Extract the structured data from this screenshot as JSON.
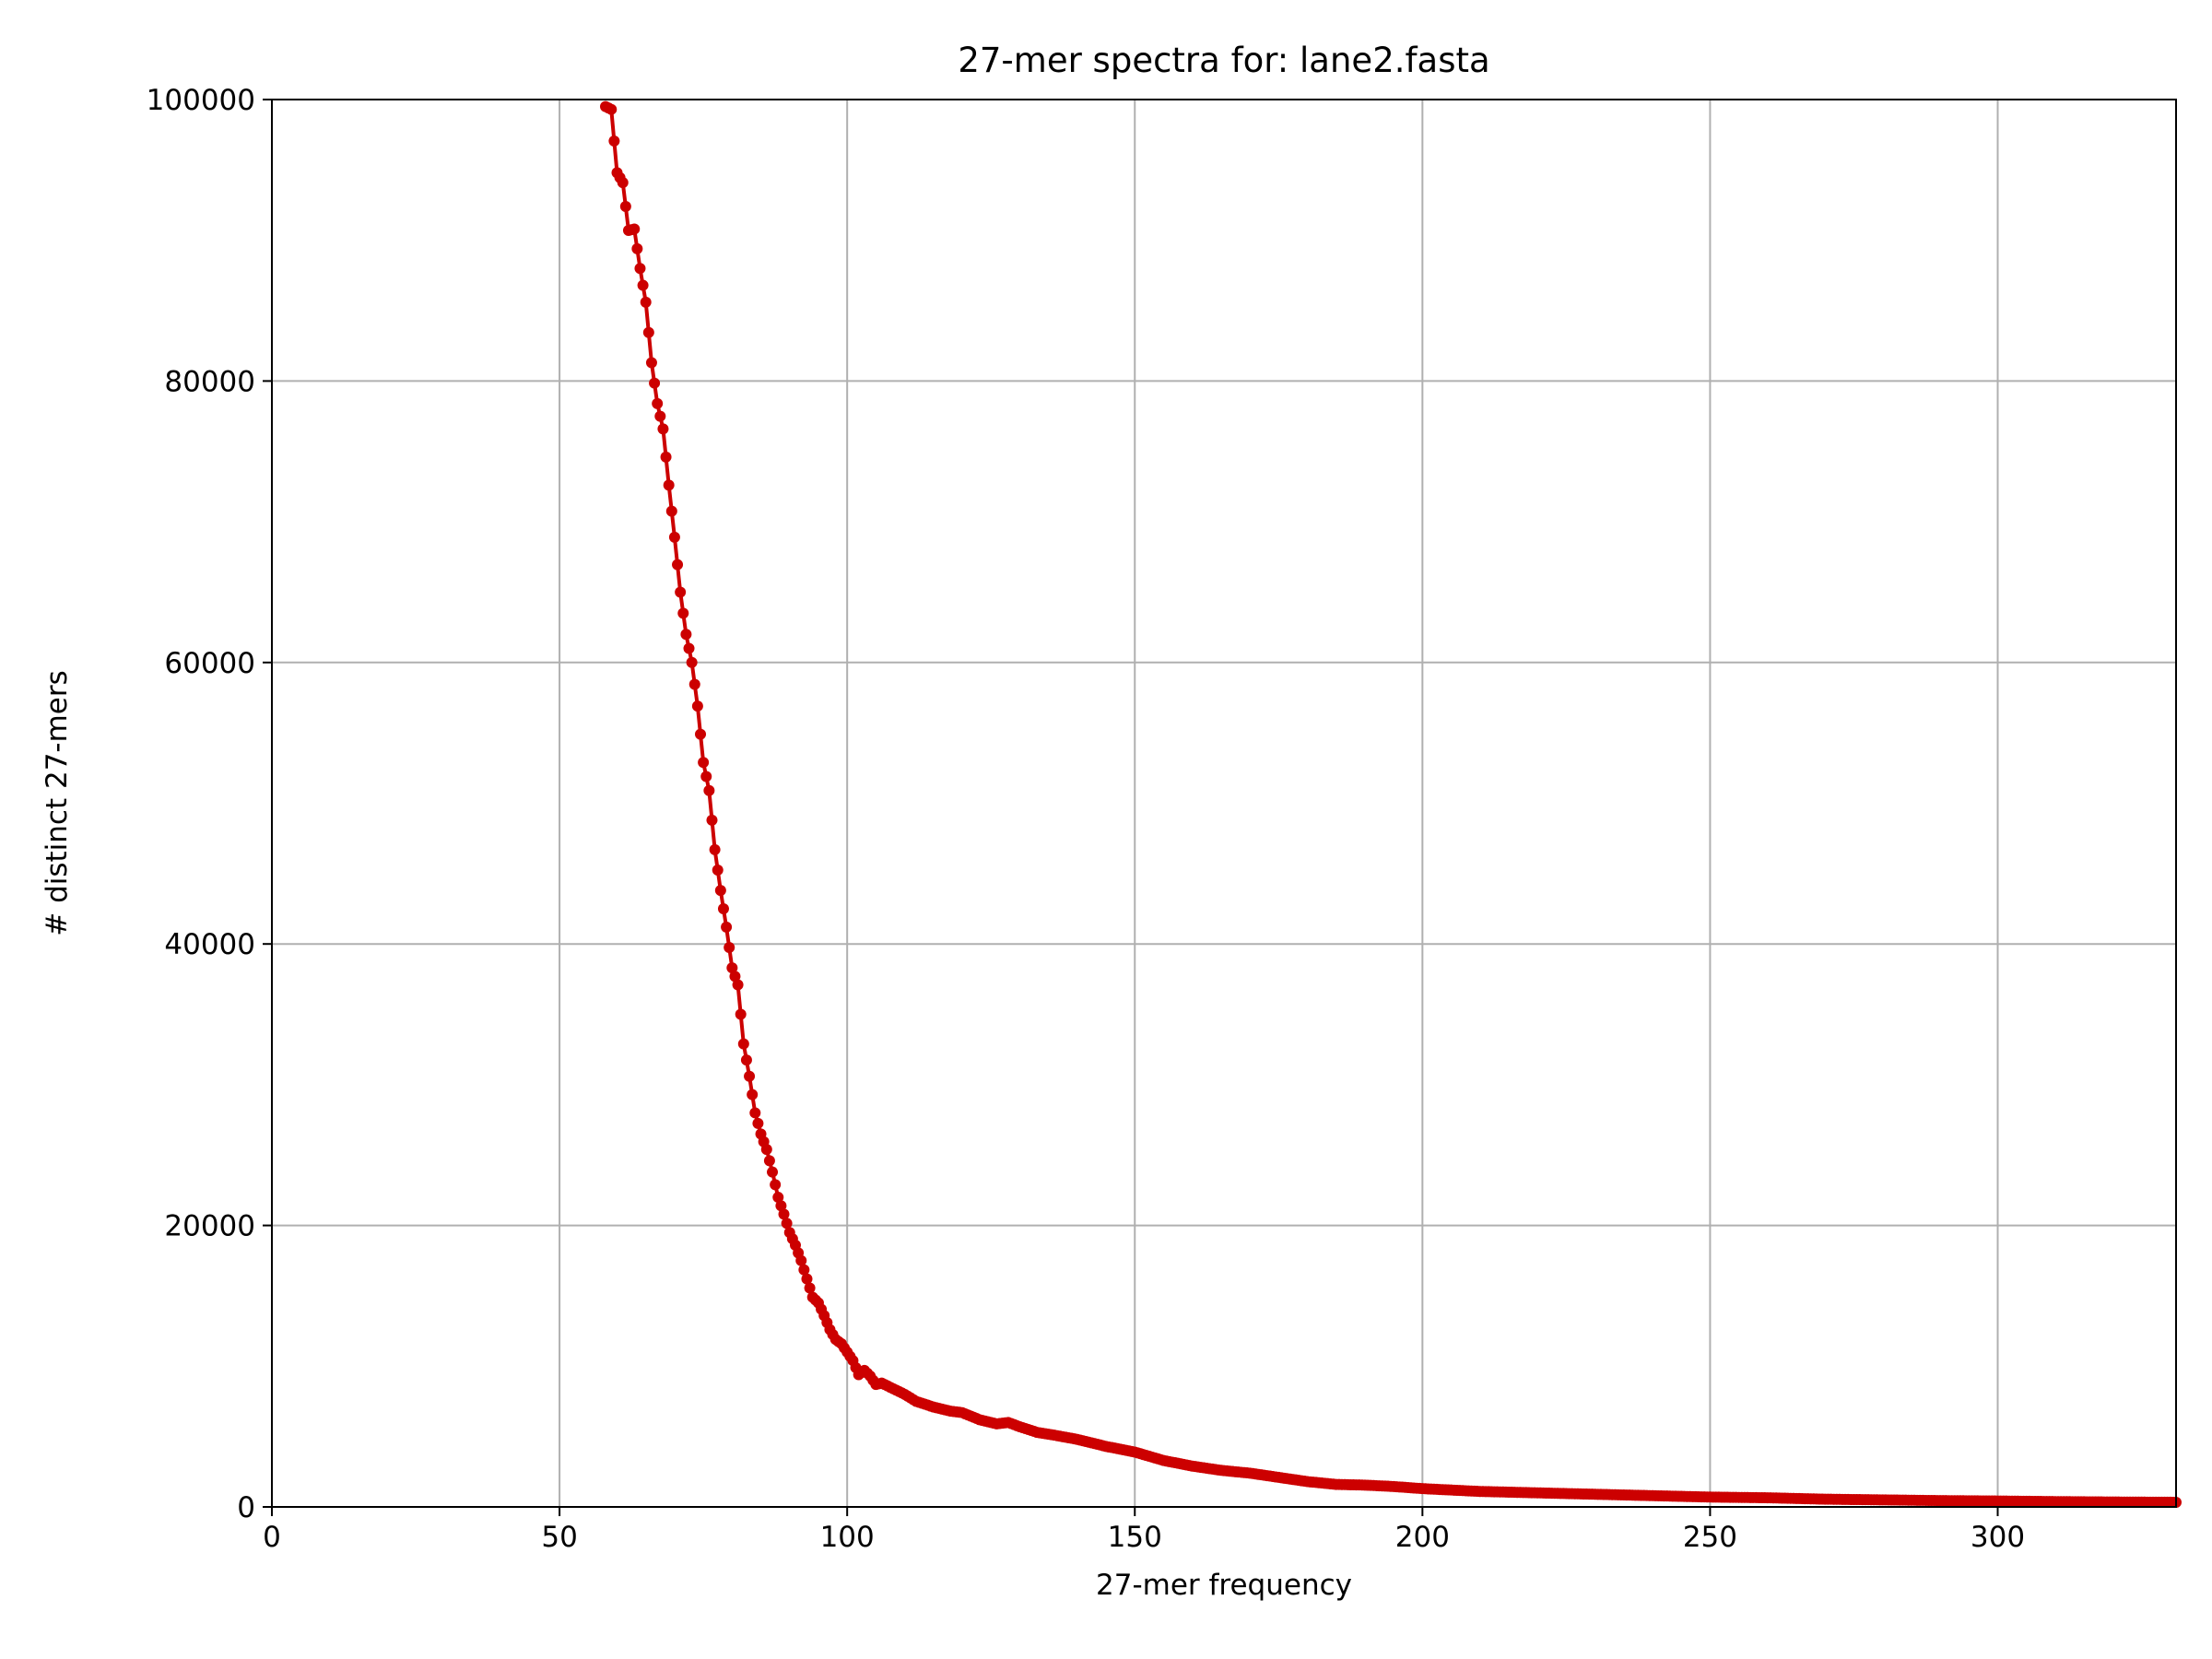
{
  "chart_data": {
    "type": "line",
    "title": "27-mer spectra for: lane2.fasta",
    "xlabel": "27-mer frequency",
    "ylabel": "# distinct 27-mers",
    "xlim": [
      0,
      331
    ],
    "ylim": [
      0,
      100000
    ],
    "x_ticks": [
      "0",
      "50",
      "100",
      "150",
      "200",
      "250",
      "300"
    ],
    "x_tick_values": [
      0,
      50,
      100,
      150,
      200,
      250,
      300
    ],
    "y_ticks": [
      "0",
      "20000",
      "40000",
      "60000",
      "80000",
      "100000"
    ],
    "y_tick_values": [
      0,
      20000,
      40000,
      60000,
      80000,
      100000
    ],
    "grid": true,
    "line_color": "#cc0000",
    "anchors": {
      "x": [
        58,
        59,
        60,
        61,
        62,
        63,
        64,
        65,
        66,
        67,
        68,
        69,
        70,
        71,
        72,
        73,
        74,
        75,
        76,
        77,
        78,
        79,
        80,
        81,
        82,
        83,
        84,
        85,
        86,
        87,
        88,
        89,
        90,
        91,
        92,
        93,
        94,
        95,
        96,
        97,
        98,
        99,
        100,
        101,
        102,
        103,
        104,
        105,
        106,
        108,
        110,
        112,
        115,
        118,
        120,
        123,
        126,
        128,
        130,
        133,
        136,
        140,
        145,
        150,
        155,
        160,
        165,
        170,
        175,
        180,
        185,
        190,
        195,
        200,
        205,
        210,
        220,
        230,
        240,
        250,
        260,
        270,
        280,
        290,
        300,
        310,
        320,
        331
      ],
      "y": [
        99500,
        99300,
        94800,
        94100,
        90700,
        90800,
        88000,
        85600,
        81300,
        78400,
        76600,
        72600,
        68900,
        65000,
        62000,
        60000,
        56900,
        52900,
        50900,
        46700,
        43800,
        41200,
        38300,
        37100,
        32900,
        30600,
        28000,
        26500,
        25400,
        23800,
        22000,
        20800,
        19500,
        18600,
        17500,
        16200,
        14900,
        14500,
        13600,
        12600,
        11900,
        11600,
        11000,
        10400,
        9400,
        9700,
        9300,
        8700,
        8800,
        8400,
        8000,
        7500,
        7100,
        6800,
        6700,
        6200,
        5900,
        6000,
        5700,
        5300,
        5100,
        4800,
        4300,
        3900,
        3300,
        2900,
        2600,
        2400,
        2100,
        1800,
        1600,
        1550,
        1450,
        1300,
        1200,
        1100,
        1000,
        900,
        800,
        700,
        650,
        550,
        500,
        450,
        420,
        380,
        350,
        330
      ]
    },
    "dense_step": 0.5
  }
}
